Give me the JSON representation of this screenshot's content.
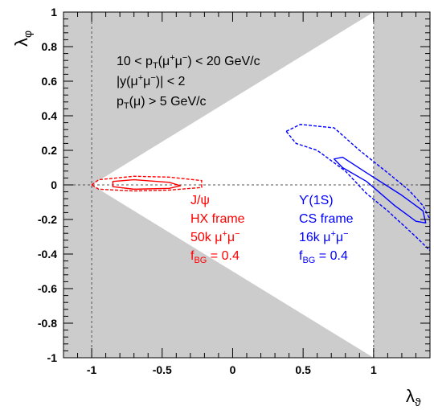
{
  "chart_data": {
    "type": "scatter",
    "title": "",
    "xlabel": "λ",
    "xlabel_sub": "ϑ",
    "ylabel": "λ",
    "ylabel_sub": "φ",
    "xlim": [
      -1.2,
      1.4
    ],
    "ylim": [
      -1.0,
      1.0
    ],
    "xticks": [
      -1,
      -0.5,
      0,
      0.5,
      1
    ],
    "xtick_labels": [
      "-1",
      "-0.5",
      "0",
      "0.5",
      "1"
    ],
    "yticks": [
      -1,
      -0.8,
      -0.6,
      -0.4,
      -0.2,
      0,
      0.2,
      0.4,
      0.6,
      0.8,
      1
    ],
    "ytick_labels": [
      "-1",
      "-0.8",
      "-0.6",
      "-0.4",
      "-0.2",
      "0",
      "0.2",
      "0.4",
      "0.6",
      "0.8",
      "1"
    ],
    "grid": false,
    "reference_lines": {
      "x": [
        -1,
        1
      ],
      "y": [
        0
      ]
    },
    "allowed_region": [
      [
        -1,
        0
      ],
      [
        1,
        1
      ],
      [
        1,
        -1
      ]
    ],
    "colors": {
      "excluded": "#cccccc",
      "allowed": "#ffffff",
      "red": "#ff0000",
      "blue": "#0000ff"
    },
    "annotation_lines": [
      [
        {
          "t": "10 < p"
        },
        {
          "t": "T",
          "s": "sub"
        },
        {
          "t": "(μ"
        },
        {
          "t": "+",
          "s": "sup"
        },
        {
          "t": "μ"
        },
        {
          "t": "−",
          "s": "sup"
        },
        {
          "t": ") < 20 GeV/c"
        }
      ],
      [
        {
          "t": "|y(μ"
        },
        {
          "t": "+",
          "s": "sup"
        },
        {
          "t": "μ"
        },
        {
          "t": "−",
          "s": "sup"
        },
        {
          "t": ")| < 2"
        }
      ],
      [
        {
          "t": "p"
        },
        {
          "t": "T",
          "s": "sub"
        },
        {
          "t": "(μ) > 5 GeV/c"
        }
      ]
    ],
    "series": [
      {
        "name": "J/ψ",
        "color": "#ff0000",
        "label_lines": [
          [
            {
              "t": "J/ψ"
            }
          ],
          [
            {
              "t": "HX frame"
            }
          ],
          [
            {
              "t": "50k μ"
            },
            {
              "t": "+",
              "s": "sup"
            },
            {
              "t": "μ"
            },
            {
              "t": "−",
              "s": "sup"
            }
          ],
          [
            {
              "t": "f"
            },
            {
              "t": "BG",
              "s": "sub"
            },
            {
              "t": " = 0.4"
            }
          ]
        ],
        "contours": [
          {
            "style": "solid",
            "points": [
              [
                -0.85,
                0.02
              ],
              [
                -0.7,
                0.03
              ],
              [
                -0.45,
                0.015
              ],
              [
                -0.37,
                -0.005
              ],
              [
                -0.45,
                -0.02
              ],
              [
                -0.7,
                -0.025
              ],
              [
                -0.85,
                -0.01
              ]
            ]
          },
          {
            "style": "dashed",
            "points": [
              [
                -1.0,
                0.0
              ],
              [
                -0.95,
                0.03
              ],
              [
                -0.7,
                0.05
              ],
              [
                -0.45,
                0.045
              ],
              [
                -0.22,
                0.025
              ],
              [
                -0.22,
                -0.015
              ],
              [
                -0.45,
                -0.03
              ],
              [
                -0.7,
                -0.035
              ],
              [
                -0.95,
                -0.025
              ]
            ]
          }
        ]
      },
      {
        "name": "ϒ(1S)",
        "color": "#0000ff",
        "label_lines": [
          [
            {
              "t": "ϒ(1S)"
            }
          ],
          [
            {
              "t": "CS frame"
            }
          ],
          [
            {
              "t": "16k μ"
            },
            {
              "t": "+",
              "s": "sup"
            },
            {
              "t": "μ"
            },
            {
              "t": "−",
              "s": "sup"
            }
          ],
          [
            {
              "t": "f"
            },
            {
              "t": "BG",
              "s": "sub"
            },
            {
              "t": " = 0.4"
            }
          ]
        ],
        "contours": [
          {
            "style": "solid",
            "points": [
              [
                0.72,
                0.15
              ],
              [
                0.78,
                0.16
              ],
              [
                0.95,
                0.07
              ],
              [
                1.2,
                -0.06
              ],
              [
                1.35,
                -0.15
              ],
              [
                1.37,
                -0.22
              ],
              [
                1.3,
                -0.21
              ],
              [
                1.15,
                -0.12
              ],
              [
                0.95,
                0.02
              ],
              [
                0.78,
                0.1
              ]
            ]
          },
          {
            "style": "dashed",
            "points": [
              [
                0.38,
                0.31
              ],
              [
                0.48,
                0.35
              ],
              [
                0.72,
                0.33
              ],
              [
                0.9,
                0.2
              ],
              [
                1.1,
                0.07
              ],
              [
                1.25,
                -0.03
              ],
              [
                1.35,
                -0.12
              ],
              [
                1.4,
                -0.2
              ],
              [
                1.4,
                -0.38
              ],
              [
                1.3,
                -0.3
              ],
              [
                1.1,
                -0.15
              ],
              [
                0.95,
                -0.05
              ],
              [
                0.8,
                0.08
              ],
              [
                0.6,
                0.2
              ],
              [
                0.45,
                0.24
              ]
            ]
          }
        ]
      }
    ]
  }
}
